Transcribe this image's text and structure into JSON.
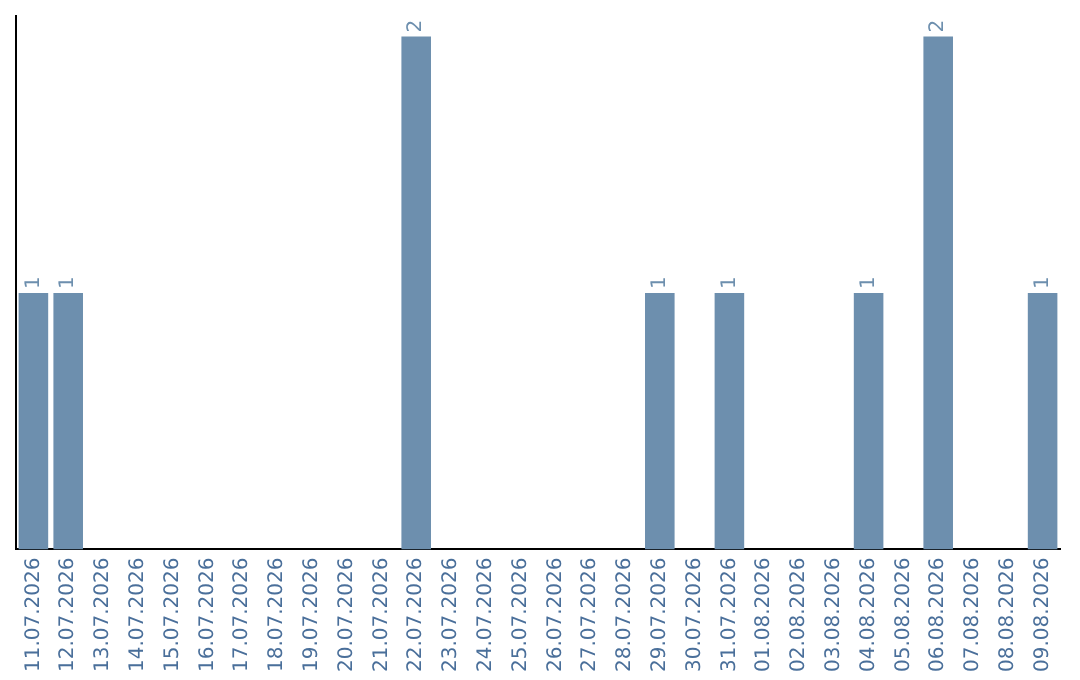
{
  "chart_data": {
    "type": "bar",
    "categories": [
      "11.07.2026",
      "12.07.2026",
      "13.07.2026",
      "14.07.2026",
      "15.07.2026",
      "16.07.2026",
      "17.07.2026",
      "18.07.2026",
      "19.07.2026",
      "20.07.2026",
      "21.07.2026",
      "22.07.2026",
      "23.07.2026",
      "24.07.2026",
      "25.07.2026",
      "26.07.2026",
      "27.07.2026",
      "28.07.2026",
      "29.07.2026",
      "30.07.2026",
      "31.07.2026",
      "01.08.2026",
      "02.08.2026",
      "03.08.2026",
      "04.08.2026",
      "05.08.2026",
      "06.08.2026",
      "07.08.2026",
      "08.08.2026",
      "09.08.2026"
    ],
    "values": [
      1,
      1,
      0,
      0,
      0,
      0,
      0,
      0,
      0,
      0,
      0,
      2,
      0,
      0,
      0,
      0,
      0,
      0,
      1,
      0,
      1,
      0,
      0,
      0,
      1,
      0,
      2,
      0,
      0,
      1
    ],
    "value_labels": [
      "1",
      "1",
      null,
      null,
      null,
      null,
      null,
      null,
      null,
      null,
      null,
      "2",
      null,
      null,
      null,
      null,
      null,
      null,
      "1",
      null,
      "1",
      null,
      null,
      null,
      "1",
      null,
      "2",
      null,
      null,
      "1"
    ],
    "color": "#6d8fae",
    "grid": false,
    "legend": false,
    "tick_labels": "x"
  }
}
